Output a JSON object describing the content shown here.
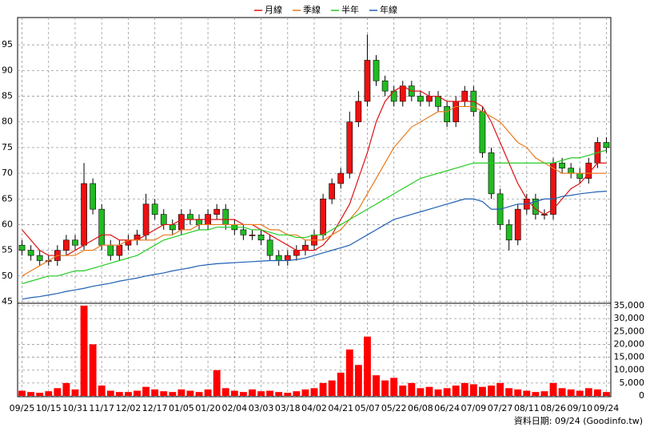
{
  "chart_data": {
    "type": "candlestick",
    "categories": [
      "09/25",
      null,
      null,
      "10/15",
      null,
      null,
      "10/31",
      null,
      null,
      "11/17",
      null,
      null,
      "12/02",
      null,
      null,
      "12/17",
      null,
      null,
      "01/05",
      null,
      null,
      "01/20",
      null,
      null,
      "02/04",
      null,
      null,
      "03/03",
      null,
      null,
      "03/18",
      null,
      null,
      "04/02",
      null,
      null,
      "04/21",
      null,
      null,
      "05/07",
      null,
      null,
      "05/22",
      null,
      null,
      "06/08",
      null,
      null,
      "06/24",
      null,
      null,
      "07/09",
      null,
      null,
      "07/27",
      null,
      null,
      "08/11",
      null,
      null,
      "08/26",
      null,
      null,
      "09/10",
      null,
      null,
      "09/24"
    ],
    "open": [
      56,
      55,
      54,
      53,
      53,
      55,
      57,
      56,
      68,
      63,
      56,
      54,
      56,
      57,
      58,
      64,
      62,
      60,
      59,
      62,
      61,
      60,
      62,
      63,
      60,
      59,
      58,
      58,
      57,
      54,
      53,
      54,
      55,
      56,
      58,
      65,
      68,
      70,
      80,
      84,
      92,
      88,
      86,
      84,
      87,
      85,
      84,
      85,
      83,
      80,
      84,
      86,
      82,
      74,
      66,
      60,
      57,
      63,
      65,
      62,
      62,
      72,
      71,
      70,
      69,
      72,
      76
    ],
    "high": [
      57,
      56,
      55,
      54,
      56,
      58,
      58,
      72,
      69,
      64,
      57,
      57,
      58,
      59,
      66,
      65,
      63,
      61,
      63,
      63,
      62,
      63,
      64,
      64,
      61,
      60,
      59,
      59,
      58,
      55,
      55,
      56,
      57,
      59,
      66,
      69,
      71,
      82,
      86,
      97,
      93,
      89,
      87,
      88,
      88,
      86,
      86,
      86,
      84,
      85,
      87,
      87,
      83,
      75,
      67,
      61,
      64,
      66,
      66,
      63,
      73,
      73,
      72,
      71,
      73,
      77,
      77
    ],
    "low": [
      54,
      53,
      52,
      52,
      52,
      54,
      55,
      55,
      62,
      55,
      53,
      53,
      55,
      56,
      57,
      61,
      59,
      58,
      58,
      60,
      59,
      59,
      61,
      59,
      58,
      57,
      57,
      56,
      53,
      52,
      52,
      53,
      54,
      55,
      57,
      64,
      67,
      69,
      79,
      83,
      87,
      85,
      83,
      83,
      84,
      83,
      83,
      82,
      79,
      79,
      83,
      81,
      73,
      65,
      59,
      55,
      56,
      62,
      61,
      61,
      61,
      70,
      69,
      68,
      68,
      71,
      74
    ],
    "close": [
      55,
      54,
      53,
      53,
      55,
      57,
      56,
      68,
      63,
      56,
      54,
      56,
      57,
      58,
      64,
      62,
      60,
      59,
      62,
      61,
      60,
      62,
      63,
      60,
      59,
      58,
      58,
      57,
      54,
      53,
      54,
      55,
      56,
      58,
      65,
      68,
      70,
      80,
      84,
      92,
      88,
      86,
      84,
      87,
      85,
      84,
      85,
      83,
      80,
      84,
      86,
      82,
      74,
      66,
      60,
      57,
      63,
      65,
      62,
      62,
      72,
      71,
      70,
      69,
      72,
      76,
      75
    ],
    "up_color": "#ee1111",
    "down_color": "#22bb22",
    "series": [
      {
        "name": "月線",
        "color": "#dd1111",
        "values": [
          59,
          57,
          55,
          54,
          54,
          54,
          55,
          56,
          57,
          58,
          58,
          57,
          57,
          57,
          58,
          59,
          60,
          60,
          61,
          61,
          61,
          61,
          61,
          61,
          61,
          60,
          60,
          59,
          58,
          57,
          56,
          55,
          55,
          55,
          56,
          58,
          61,
          64,
          69,
          74,
          80,
          84,
          86,
          87,
          86,
          86,
          85,
          85,
          84,
          84,
          84,
          84,
          83,
          80,
          76,
          72,
          68,
          65,
          63,
          62,
          63,
          65,
          67,
          68,
          70,
          72,
          72
        ]
      },
      {
        "name": "季線",
        "color": "#e87a1c",
        "values": [
          50,
          51,
          52,
          53,
          54,
          54,
          54,
          55,
          55,
          56,
          56,
          56,
          57,
          57,
          57,
          57,
          58,
          58,
          59,
          59,
          60,
          60,
          60,
          60,
          60,
          60,
          60,
          60,
          59,
          59,
          58,
          58,
          57,
          57,
          57,
          58,
          59,
          61,
          63,
          66,
          69,
          72,
          75,
          77,
          79,
          80,
          81,
          82,
          82,
          83,
          83,
          83,
          82,
          81,
          80,
          78,
          76,
          75,
          73,
          72,
          71,
          70,
          70,
          70,
          70,
          70,
          70
        ]
      },
      {
        "name": "半年",
        "color": "#22cc22",
        "values": [
          48.5,
          49,
          49.5,
          50,
          50,
          50.5,
          51,
          51,
          51.5,
          52,
          52.5,
          53,
          53.5,
          54,
          55,
          56,
          57,
          57.5,
          58,
          58.5,
          59,
          59,
          59.5,
          59.5,
          59.5,
          59.5,
          59,
          59,
          58.5,
          58,
          58,
          57.5,
          57.5,
          58,
          58,
          59,
          60,
          61,
          62,
          63,
          64,
          65,
          66,
          67,
          68,
          69,
          69.5,
          70,
          70.5,
          71,
          71.5,
          72,
          72,
          72,
          72,
          72,
          72,
          72,
          72,
          72,
          72,
          72.5,
          73,
          73,
          73.5,
          74,
          74.5
        ]
      },
      {
        "name": "年線",
        "color": "#1f5fb4",
        "values": [
          45.5,
          45.8,
          46,
          46.3,
          46.6,
          47,
          47.3,
          47.6,
          48,
          48.3,
          48.6,
          49,
          49.3,
          49.6,
          50,
          50.3,
          50.6,
          51,
          51.3,
          51.6,
          52,
          52.2,
          52.4,
          52.5,
          52.6,
          52.7,
          52.8,
          52.9,
          53,
          53,
          53,
          53.2,
          53.5,
          54,
          54.5,
          55,
          55.5,
          56,
          57,
          58,
          59,
          60,
          61,
          61.5,
          62,
          62.5,
          63,
          63.5,
          64,
          64.5,
          65,
          65,
          64.5,
          63,
          63,
          63.5,
          64,
          64,
          64.5,
          65,
          65,
          65.5,
          65.7,
          66,
          66.2,
          66.4,
          66.5
        ]
      }
    ],
    "ylim": [
      45,
      100
    ],
    "yticks": [
      45,
      50,
      55,
      60,
      65,
      70,
      75,
      80,
      85,
      90,
      95
    ],
    "grid": true,
    "volume": {
      "color": "#ff0000",
      "values": [
        2000,
        1500,
        1200,
        1800,
        3000,
        5000,
        2500,
        35000,
        20000,
        4000,
        2000,
        1500,
        1500,
        2000,
        3500,
        2500,
        1800,
        1500,
        2500,
        2000,
        1500,
        2500,
        10000,
        3000,
        2000,
        1500,
        2500,
        1800,
        2000,
        1500,
        1200,
        1800,
        2500,
        3000,
        5000,
        6000,
        9000,
        18000,
        12000,
        23000,
        8000,
        6000,
        7000,
        4000,
        5000,
        3000,
        3500,
        2500,
        3000,
        4000,
        5000,
        4500,
        3500,
        4000,
        5000,
        3000,
        2500,
        2000,
        1500,
        1800,
        5000,
        3000,
        2500,
        2000,
        3000,
        2500,
        1500
      ],
      "ylim": [
        0,
        35000
      ],
      "yticks": [
        0,
        {
          "value": 5000,
          "label": "5,000"
        },
        {
          "value": 10000,
          "label": "10,000"
        },
        {
          "value": 15000,
          "label": "15,000"
        },
        {
          "value": 20000,
          "label": "20,000"
        },
        {
          "value": 25000,
          "label": "25,000"
        },
        {
          "value": 30000,
          "label": "30,000"
        },
        {
          "value": 35000,
          "label": "35,000"
        }
      ]
    },
    "source_note": "資料日期: 09/24 (Goodinfo.tw)"
  }
}
